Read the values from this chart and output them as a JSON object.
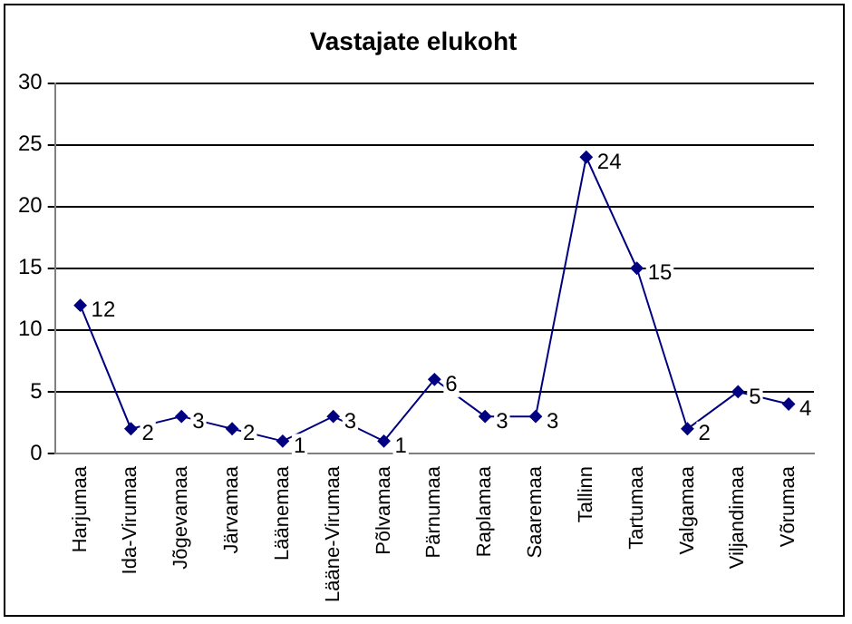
{
  "chart_data": {
    "type": "line",
    "title": "Vastajate elukoht",
    "categories": [
      "Harjumaa",
      "Ida-Virumaa",
      "Jõgevamaa",
      "Järvamaa",
      "Läänemaa",
      "Lääne-Virumaa",
      "Põlvamaa",
      "Pärnumaa",
      "Raplamaa",
      "Saaremaa",
      "Tallinn",
      "Tartumaa",
      "Valgamaa",
      "Viljandimaa",
      "Võrumaa"
    ],
    "series": [
      {
        "color": "#000080",
        "values": [
          12,
          2,
          3,
          2,
          1,
          3,
          1,
          6,
          3,
          3,
          24,
          15,
          2,
          5,
          4
        ]
      }
    ],
    "ylim": [
      0,
      30
    ],
    "yticks": [
      0,
      5,
      10,
      15,
      20,
      25,
      30
    ],
    "grid": "y",
    "legend": false,
    "marker": "diamond",
    "line_style": "solid",
    "data_labels": true
  }
}
